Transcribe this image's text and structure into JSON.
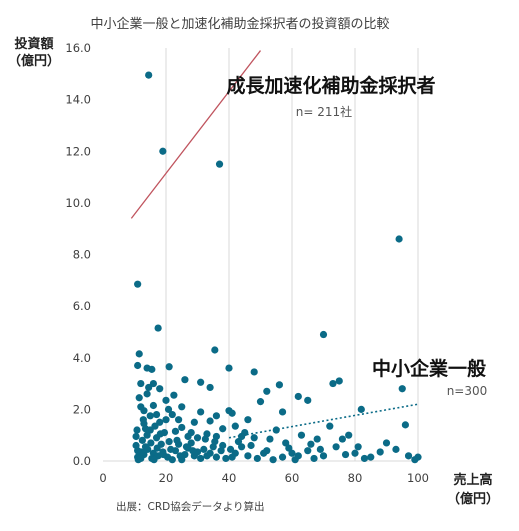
{
  "chart_data": {
    "type": "scatter",
    "title": "中小企業一般と加速化補助金採択者の投資額の比較",
    "ylabel_line1": "投資額",
    "ylabel_line2": "（億円）",
    "xlabel_line1": "売上高",
    "xlabel_line2": "（億円）",
    "xlim": [
      0,
      100
    ],
    "ylim": [
      0,
      16
    ],
    "x_ticks": [
      "0",
      "20",
      "40",
      "60",
      "80",
      "100"
    ],
    "y_ticks": [
      "0.0",
      "2.0",
      "4.0",
      "6.0",
      "8.0",
      "10.0",
      "12.0",
      "14.0",
      "16.0"
    ],
    "grid": "vertical",
    "annotations": {
      "growth_label": "成長加速化補助金採択者",
      "growth_n": "n= 211社",
      "sme_label": "中小企業一般",
      "sme_n": "n=300"
    },
    "source_note": "出展：CRD協会データより算出",
    "colors": {
      "points": "#0b6b87",
      "growth_trend": "#c0545e",
      "sme_trend": "#0b6b87",
      "grid": "#d9d9d9",
      "text": "#404040"
    },
    "growth_trendline": {
      "x": [
        9,
        50
      ],
      "y": [
        9.4,
        15.9
      ]
    },
    "sme_trendline": {
      "x": [
        40,
        100
      ],
      "y": [
        0.9,
        2.2
      ]
    },
    "series": [
      {
        "values": [
          [
            14.5,
            14.95
          ],
          [
            19,
            12.0
          ],
          [
            37,
            11.5
          ],
          [
            94,
            8.6
          ],
          [
            11,
            6.85
          ],
          [
            17.5,
            5.15
          ],
          [
            70,
            4.9
          ],
          [
            35.5,
            4.3
          ],
          [
            11.5,
            4.15
          ],
          [
            14,
            3.6
          ],
          [
            15.5,
            3.55
          ],
          [
            11,
            3.7
          ],
          [
            21,
            3.65
          ],
          [
            40,
            3.6
          ],
          [
            26,
            3.15
          ],
          [
            48,
            3.45
          ],
          [
            31,
            3.05
          ],
          [
            34,
            2.85
          ],
          [
            14.5,
            2.85
          ],
          [
            16,
            3.0
          ],
          [
            75,
            3.1
          ],
          [
            73,
            3.0
          ],
          [
            56,
            2.95
          ],
          [
            52,
            2.7
          ],
          [
            62,
            2.5
          ],
          [
            65,
            2.35
          ],
          [
            95,
            2.8
          ],
          [
            82,
            2.0
          ],
          [
            40,
            1.95
          ],
          [
            41,
            1.85
          ],
          [
            12,
            2.1
          ],
          [
            50,
            2.3
          ],
          [
            22,
            1.8
          ],
          [
            20,
            1.6
          ],
          [
            18,
            1.5
          ],
          [
            13,
            1.45
          ],
          [
            15,
            1.2
          ],
          [
            25,
            1.3
          ],
          [
            28,
            1.1
          ],
          [
            33,
            1.05
          ],
          [
            36,
            0.95
          ],
          [
            30,
            0.9
          ],
          [
            45,
            1.1
          ],
          [
            48,
            0.9
          ],
          [
            55,
            1.2
          ],
          [
            58,
            0.7
          ],
          [
            63,
            1.0
          ],
          [
            68,
            0.85
          ],
          [
            72,
            1.35
          ],
          [
            76,
            0.85
          ],
          [
            78,
            1.0
          ],
          [
            90,
            0.7
          ],
          [
            97,
            0.2
          ],
          [
            99,
            0.05
          ],
          [
            80,
            0.3
          ],
          [
            85,
            0.15
          ],
          [
            70,
            0.2
          ],
          [
            60,
            0.3
          ],
          [
            52,
            0.4
          ],
          [
            44,
            0.55
          ],
          [
            38,
            0.6
          ],
          [
            32,
            0.45
          ],
          [
            27,
            0.5
          ],
          [
            23,
            0.4
          ],
          [
            19,
            0.35
          ],
          [
            16,
            0.3
          ],
          [
            13,
            0.25
          ],
          [
            11,
            0.15
          ],
          [
            10.5,
            0.6
          ],
          [
            12.5,
            0.8
          ],
          [
            14,
            1.0
          ],
          [
            17,
            0.9
          ],
          [
            21,
            0.75
          ],
          [
            24,
            0.65
          ],
          [
            26,
            0.25
          ],
          [
            29,
            0.2
          ],
          [
            31,
            0.1
          ],
          [
            34,
            0.3
          ],
          [
            36,
            0.15
          ],
          [
            39,
            0.1
          ],
          [
            42,
            0.3
          ],
          [
            46,
            0.2
          ],
          [
            49,
            0.1
          ],
          [
            54,
            0.05
          ],
          [
            57,
            0.15
          ],
          [
            61,
            0.05
          ],
          [
            65,
            0.4
          ],
          [
            67,
            0.1
          ],
          [
            74,
            0.55
          ],
          [
            83,
            0.1
          ],
          [
            11.2,
            0.05
          ],
          [
            12.2,
            0.35
          ],
          [
            13.5,
            0.55
          ],
          [
            15.5,
            0.1
          ],
          [
            17.5,
            0.2
          ],
          [
            18.5,
            0.65
          ],
          [
            20.5,
            0.15
          ],
          [
            22,
            0.05
          ],
          [
            25,
            0.05
          ],
          [
            28,
            0.7
          ],
          [
            30,
            0.35
          ],
          [
            32.5,
            0.85
          ],
          [
            35,
            0.55
          ],
          [
            37.5,
            0.4
          ],
          [
            41,
            0.15
          ],
          [
            43,
            0.75
          ],
          [
            10.8,
            1.2
          ],
          [
            12.8,
            1.6
          ],
          [
            15,
            1.75
          ],
          [
            16.5,
            1.35
          ],
          [
            19.5,
            1.1
          ],
          [
            23,
            1.15
          ],
          [
            27,
            0.95
          ],
          [
            34,
            1.55
          ],
          [
            38,
            1.25
          ],
          [
            11.5,
            2.45
          ],
          [
            13,
            1.95
          ],
          [
            16,
            2.15
          ],
          [
            20,
            2.35
          ],
          [
            25,
            2.1
          ],
          [
            29,
            1.5
          ],
          [
            31,
            1.9
          ],
          [
            11,
            0.4
          ],
          [
            12,
            0.1
          ],
          [
            14.2,
            0.45
          ],
          [
            15.2,
            0.7
          ],
          [
            16.2,
            0.05
          ],
          [
            17.2,
            0.5
          ],
          [
            18.2,
            1.05
          ],
          [
            19.2,
            0.25
          ],
          [
            21.5,
            0.45
          ],
          [
            23.5,
            0.8
          ],
          [
            24.5,
            0.2
          ],
          [
            26.5,
            0.55
          ],
          [
            28.5,
            0.4
          ],
          [
            33,
            0.2
          ],
          [
            35.5,
            0.75
          ],
          [
            40.5,
            0.45
          ],
          [
            47,
            0.6
          ],
          [
            51,
            0.3
          ],
          [
            53,
            0.85
          ],
          [
            59,
            0.5
          ],
          [
            62,
            0.2
          ],
          [
            66,
            0.65
          ],
          [
            69,
            0.45
          ],
          [
            77,
            0.25
          ],
          [
            81,
            0.55
          ],
          [
            88,
            0.35
          ],
          [
            93,
            0.45
          ],
          [
            96,
            1.4
          ],
          [
            100,
            0.15
          ],
          [
            12,
            3.0
          ],
          [
            14,
            2.6
          ],
          [
            18,
            2.8
          ],
          [
            22.5,
            2.55
          ],
          [
            13.5,
            1.25
          ],
          [
            10.5,
            0.95
          ],
          [
            17,
            1.8
          ],
          [
            20.8,
            2.0
          ],
          [
            24,
            1.6
          ],
          [
            42,
            1.35
          ],
          [
            46,
            1.6
          ],
          [
            57,
            1.9
          ],
          [
            44,
            0.95
          ],
          [
            36,
            1.75
          ]
        ]
      }
    ]
  }
}
